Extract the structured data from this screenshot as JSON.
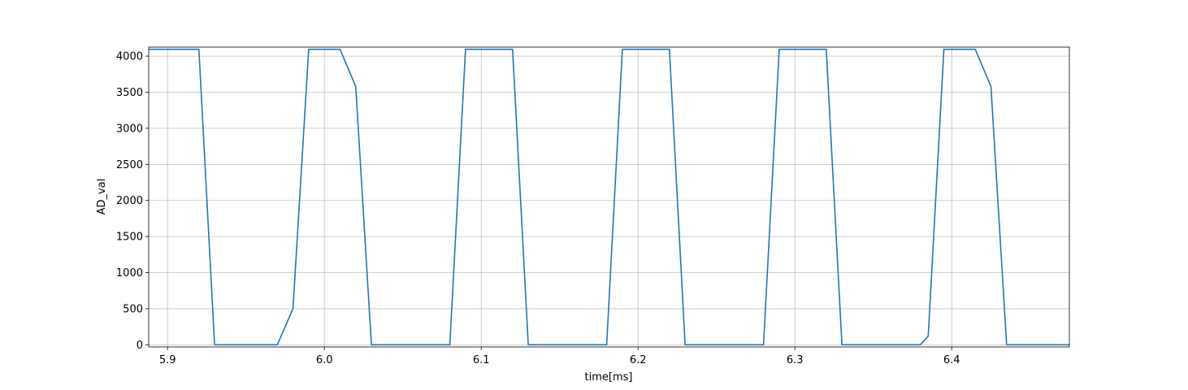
{
  "chart_data": {
    "type": "line",
    "title": "",
    "xlabel": "time[ms]",
    "ylabel": "AD_val",
    "xlim": [
      5.888,
      6.475
    ],
    "ylim": [
      -30,
      4125
    ],
    "xticks": [
      5.9,
      6.0,
      6.1,
      6.2,
      6.3,
      6.4
    ],
    "xtick_labels": [
      "5.9",
      "6.0",
      "6.1",
      "6.2",
      "6.3",
      "6.4"
    ],
    "yticks": [
      0,
      500,
      1000,
      1500,
      2000,
      2500,
      3000,
      3500,
      4000
    ],
    "ytick_labels": [
      "0",
      "500",
      "1000",
      "1500",
      "2000",
      "2500",
      "3000",
      "3500",
      "4000"
    ],
    "grid": true,
    "colors": {
      "line": "#1f77b4"
    },
    "series": [
      {
        "x": [
          5.888,
          5.92,
          5.93,
          5.97,
          5.98,
          5.99,
          6.01,
          6.02,
          6.03,
          6.08,
          6.09,
          6.12,
          6.13,
          6.18,
          6.19,
          6.22,
          6.23,
          6.28,
          6.29,
          6.32,
          6.33,
          6.38,
          6.385,
          6.395,
          6.415,
          6.425,
          6.435,
          6.475
        ],
        "y": [
          4095,
          4095,
          0,
          0,
          500,
          4095,
          4095,
          3580,
          0,
          0,
          4095,
          4095,
          0,
          0,
          4095,
          4095,
          0,
          0,
          4095,
          4095,
          0,
          0,
          120,
          4095,
          4095,
          3580,
          0,
          0
        ]
      }
    ]
  }
}
